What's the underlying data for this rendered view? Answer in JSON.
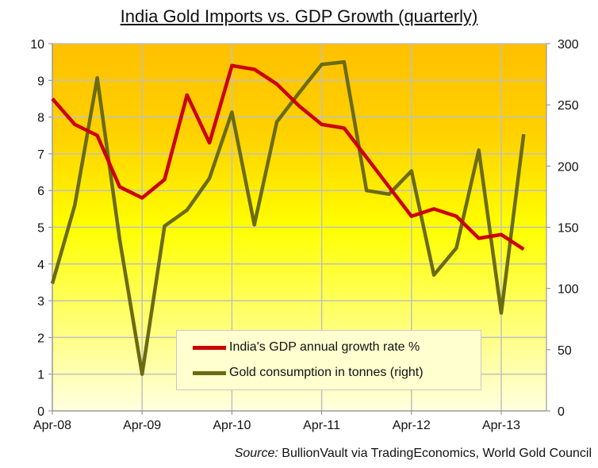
{
  "chart_data": {
    "type": "line",
    "title": "India Gold Imports vs. GDP Growth (quarterly)",
    "source_label": "Source:",
    "source_text": "BullionVault via TradingEconomics, World Gold Council",
    "x": [
      "Apr-08",
      "Jul-08",
      "Oct-08",
      "Jan-09",
      "Apr-09",
      "Jul-09",
      "Oct-09",
      "Jan-10",
      "Apr-10",
      "Jul-10",
      "Oct-10",
      "Jan-11",
      "Apr-11",
      "Jul-11",
      "Oct-11",
      "Jan-12",
      "Apr-12",
      "Jul-12",
      "Oct-12",
      "Jan-13",
      "Apr-13",
      "Jul-13"
    ],
    "x_tick_labels": [
      "Apr-08",
      "Apr-09",
      "Apr-10",
      "Apr-11",
      "Apr-12",
      "Apr-13"
    ],
    "left_axis": {
      "ylim": [
        0,
        10
      ],
      "ticks": [
        "0",
        "1",
        "2",
        "3",
        "4",
        "5",
        "6",
        "7",
        "8",
        "9",
        "10"
      ]
    },
    "right_axis": {
      "ylim": [
        0,
        300
      ],
      "ticks": [
        "0",
        "50",
        "100",
        "150",
        "200",
        "250",
        "300"
      ]
    },
    "grid": true,
    "legend_position": "bottom-center",
    "series": [
      {
        "name": "India's GDP annual growth rate %",
        "axis": "left",
        "color": "#cc0000",
        "values": [
          8.5,
          7.8,
          7.5,
          6.1,
          5.8,
          6.3,
          8.6,
          7.3,
          9.4,
          9.3,
          8.9,
          8.3,
          7.8,
          7.7,
          6.9,
          6.1,
          5.3,
          5.5,
          5.3,
          4.7,
          4.8,
          4.4
        ]
      },
      {
        "name": "Gold consumption in tonnes (right)",
        "axis": "right",
        "color": "#6b6b10",
        "values": [
          104,
          168,
          272,
          140,
          30,
          151,
          164,
          190,
          244,
          152,
          236,
          260,
          283,
          285,
          180,
          177,
          196,
          111,
          133,
          213,
          80,
          226
        ]
      }
    ]
  }
}
